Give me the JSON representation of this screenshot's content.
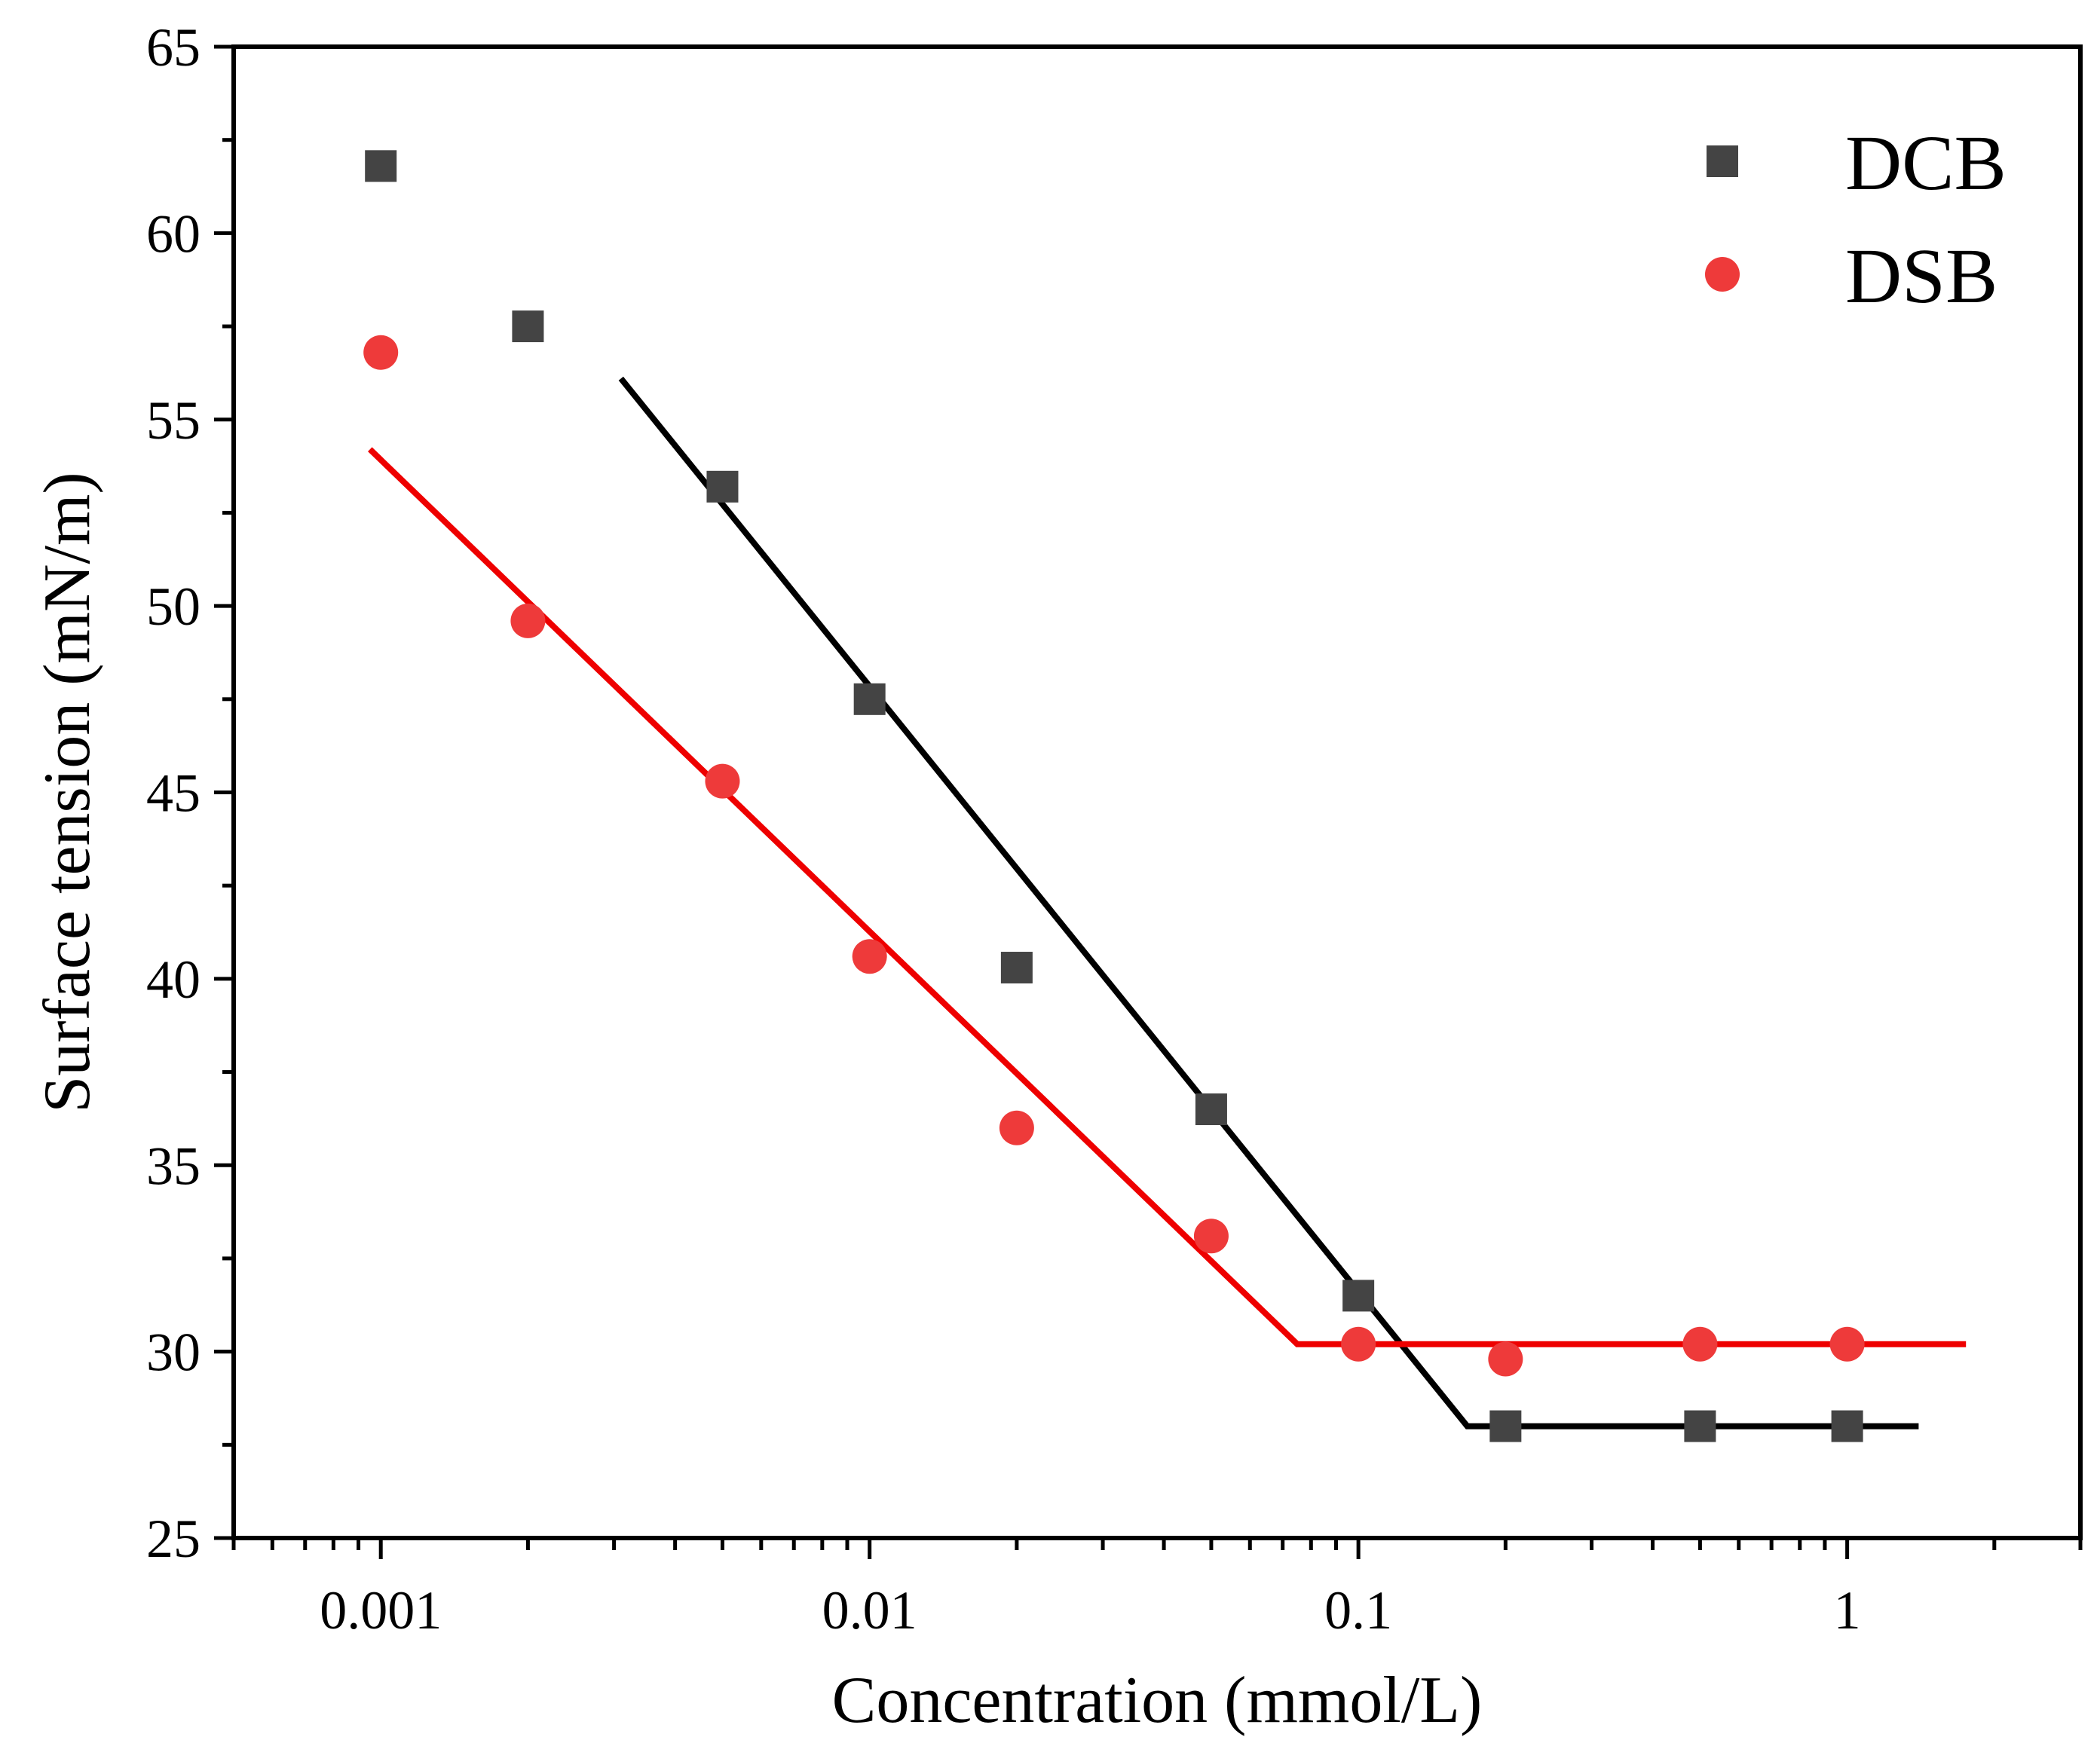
{
  "chart_data": {
    "type": "scatter",
    "title": "",
    "xlabel": "Concentration (mmol/L)",
    "ylabel": "Surface tension (mN/m)",
    "xscale": "log",
    "xlim": [
      0.0005,
      3.0
    ],
    "ylim": [
      25,
      65
    ],
    "x_ticks": [
      {
        "value": 0.001,
        "label": "0.001"
      },
      {
        "value": 0.01,
        "label": "0.01"
      },
      {
        "value": 0.1,
        "label": "0.1"
      },
      {
        "value": 1,
        "label": "1"
      }
    ],
    "y_ticks": [
      {
        "value": 25,
        "label": "25"
      },
      {
        "value": 30,
        "label": "30"
      },
      {
        "value": 35,
        "label": "35"
      },
      {
        "value": 40,
        "label": "40"
      },
      {
        "value": 45,
        "label": "45"
      },
      {
        "value": 50,
        "label": "50"
      },
      {
        "value": 55,
        "label": "55"
      },
      {
        "value": 60,
        "label": "60"
      },
      {
        "value": 65,
        "label": "65"
      }
    ],
    "legend_position": "top-right",
    "series": [
      {
        "name": "DCB",
        "marker": "square",
        "color": "#444444",
        "line_color": "#000000",
        "x": [
          0.001,
          0.002,
          0.005,
          0.01,
          0.02,
          0.05,
          0.1,
          0.2,
          0.5,
          1.0
        ],
        "y": [
          61.8,
          57.5,
          53.2,
          47.5,
          40.3,
          36.5,
          31.5,
          28.0,
          28.0,
          28.0
        ],
        "fit_line": {
          "x": [
            0.0031,
            0.167,
            1.4
          ],
          "y": [
            56.1,
            28.0,
            28.0
          ]
        }
      },
      {
        "name": "DSB",
        "marker": "circle",
        "color": "#ee3a3a",
        "line_color": "#ee0000",
        "x": [
          0.001,
          0.002,
          0.005,
          0.01,
          0.02,
          0.05,
          0.1,
          0.2,
          0.5,
          1.0
        ],
        "y": [
          56.8,
          49.6,
          45.3,
          40.6,
          36.0,
          33.1,
          30.2,
          29.8,
          30.2,
          30.2
        ],
        "fit_line": {
          "x": [
            0.00095,
            0.075,
            1.75
          ],
          "y": [
            54.2,
            30.2,
            30.2
          ]
        }
      }
    ]
  }
}
